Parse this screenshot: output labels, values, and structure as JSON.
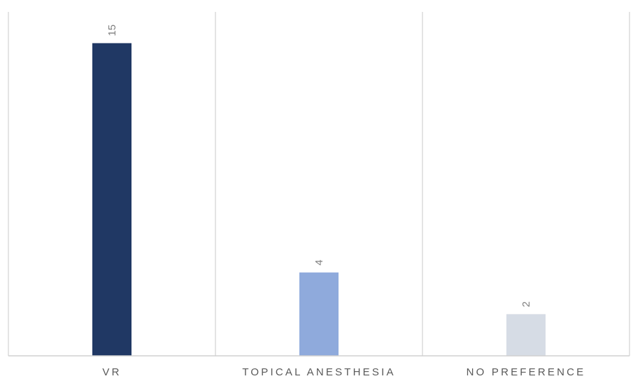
{
  "chart_data": {
    "type": "bar",
    "categories": [
      "VR",
      "TOPICAL ANESTHESIA",
      "NO PREFERENCE"
    ],
    "values": [
      15,
      4,
      2
    ],
    "title": "",
    "xlabel": "",
    "ylabel": "",
    "ylim": [
      0,
      16.5
    ],
    "grid": "vertical category separators",
    "legend": "none",
    "data_labels": [
      "15",
      "4",
      "2"
    ],
    "bar_colors": [
      "#203864",
      "#8faadc",
      "#d6dce5"
    ]
  }
}
